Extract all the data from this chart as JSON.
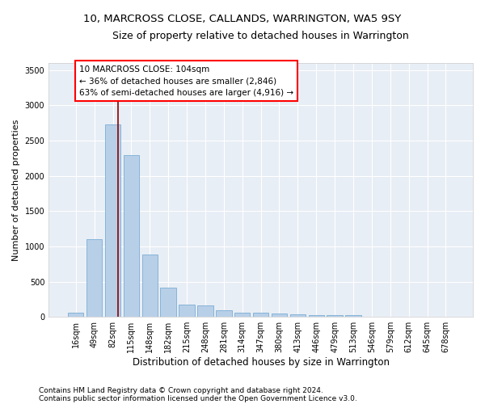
{
  "title": "10, MARCROSS CLOSE, CALLANDS, WARRINGTON, WA5 9SY",
  "subtitle": "Size of property relative to detached houses in Warrington",
  "xlabel": "Distribution of detached houses by size in Warrington",
  "ylabel": "Number of detached properties",
  "categories": [
    "16sqm",
    "49sqm",
    "82sqm",
    "115sqm",
    "148sqm",
    "182sqm",
    "215sqm",
    "248sqm",
    "281sqm",
    "314sqm",
    "347sqm",
    "380sqm",
    "413sqm",
    "446sqm",
    "479sqm",
    "513sqm",
    "546sqm",
    "579sqm",
    "612sqm",
    "645sqm",
    "678sqm"
  ],
  "values": [
    60,
    1100,
    2730,
    2290,
    880,
    420,
    175,
    165,
    95,
    65,
    55,
    45,
    35,
    30,
    25,
    20,
    8,
    5,
    3,
    2,
    1
  ],
  "bar_color": "#b8cfe8",
  "bar_edge_color": "#7aadd4",
  "background_color": "#e8eef5",
  "grid_color": "#ffffff",
  "vline_color": "#8b0000",
  "vline_x_index": 2,
  "annotation_box_text": "10 MARCROSS CLOSE: 104sqm\n← 36% of detached houses are smaller (2,846)\n63% of semi-detached houses are larger (4,916) →",
  "footer_line1": "Contains HM Land Registry data © Crown copyright and database right 2024.",
  "footer_line2": "Contains public sector information licensed under the Open Government Licence v3.0.",
  "ylim": [
    0,
    3600
  ],
  "yticks": [
    0,
    500,
    1000,
    1500,
    2000,
    2500,
    3000,
    3500
  ],
  "title_fontsize": 9.5,
  "subtitle_fontsize": 9,
  "xlabel_fontsize": 8.5,
  "ylabel_fontsize": 8,
  "tick_fontsize": 7,
  "annotation_fontsize": 7.5,
  "footer_fontsize": 6.5
}
